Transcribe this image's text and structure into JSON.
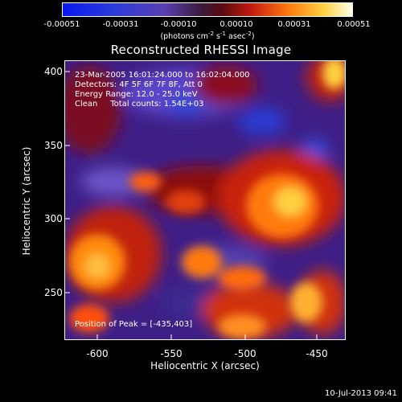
{
  "colorbar": {
    "ticks": [
      "-0.00051",
      "-0.00031",
      "-0.00010",
      "0.00010",
      "0.00031",
      "0.00051"
    ],
    "unit_text": "(photons cm",
    "unit_exp1": "-2",
    "unit_mid1": " s",
    "unit_exp2": "-1",
    "unit_mid2": " asec",
    "unit_exp3": "-2",
    "unit_end": ")"
  },
  "title": "Reconstructed RHESSI Image",
  "info": {
    "line1": "23-Mar-2005 16:01:24.000 to 16:02:04.000",
    "line2": "Detectors: 4F 5F 6F 7F 8F, Att 0",
    "line3": "Energy Range: 12.0 - 25.0 keV",
    "line4": "Clean     Total counts: 1.54E+03",
    "peak": "Position of Peak = [-435,403]"
  },
  "axes": {
    "xlabel": "Heliocentric X (arcsec)",
    "ylabel": "Heliocentric Y (arcsec)",
    "xticks": [
      "-600",
      "-550",
      "-500",
      "-450"
    ],
    "yticks": [
      "400",
      "350",
      "300",
      "250"
    ]
  },
  "timestamp": "10-Jul-2013 09:41"
}
